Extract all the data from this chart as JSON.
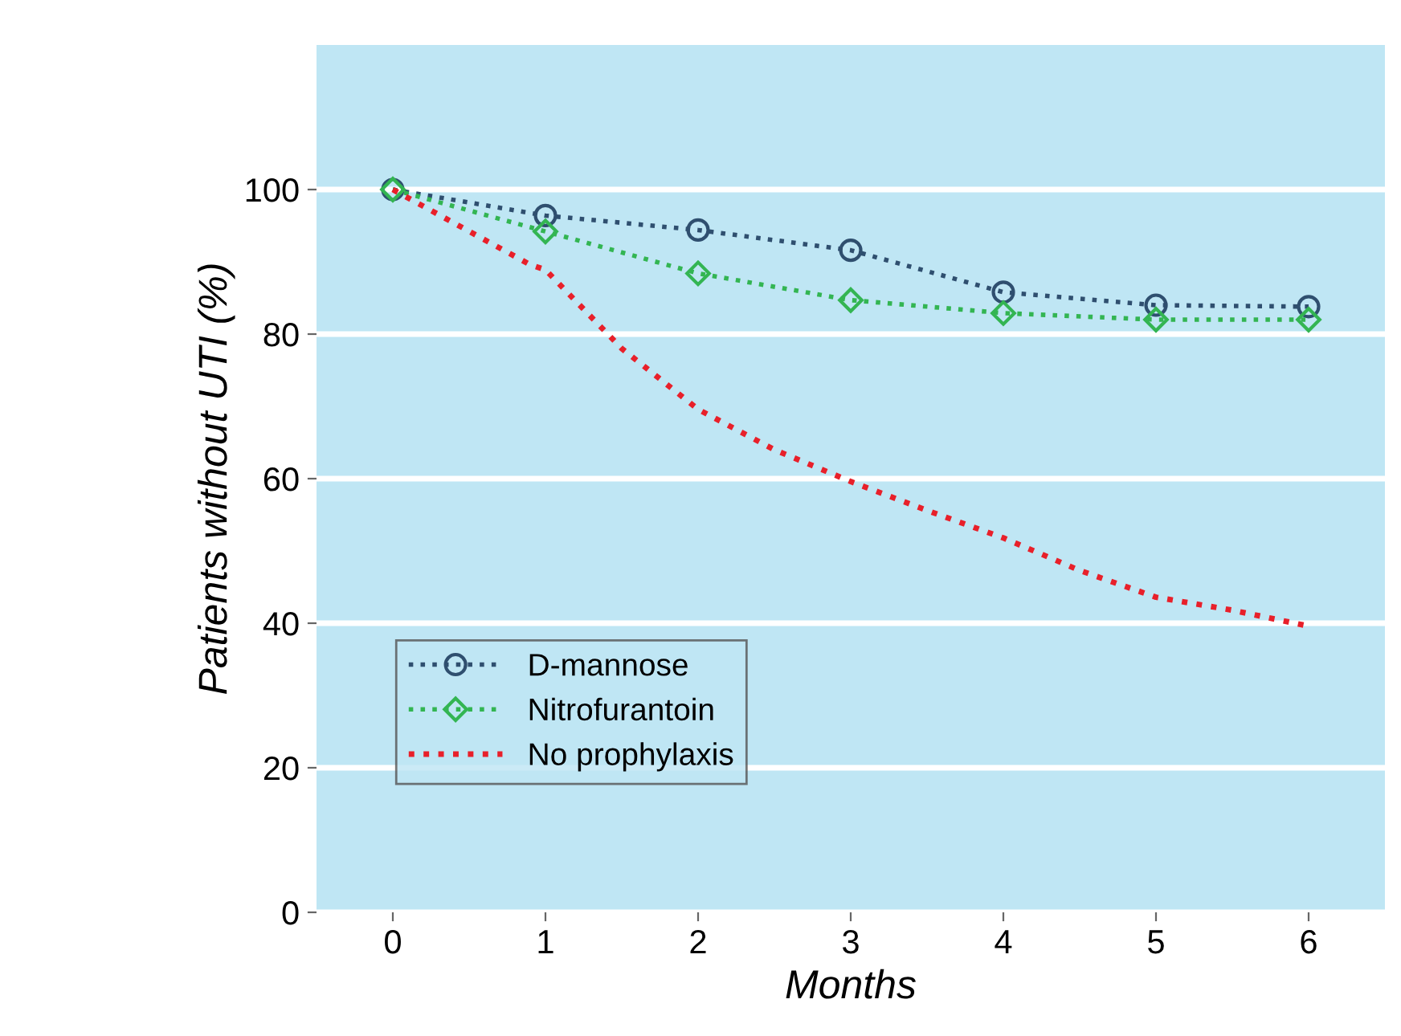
{
  "chart_data": {
    "type": "line",
    "xlabel": "Months",
    "ylabel": "Patients without UTI (%)",
    "xlim": [
      -0.5,
      6.5
    ],
    "xticks": [
      0,
      1,
      2,
      3,
      4,
      5,
      6
    ],
    "ylim": [
      0,
      120
    ],
    "yticks": [
      0,
      20,
      40,
      60,
      80,
      100
    ],
    "grid": "y",
    "legend": "bottom left",
    "line_style": "dotted",
    "series": [
      {
        "name": "D-mannose",
        "color": "#2f4f6f",
        "marker": "circle",
        "x": [
          0,
          1,
          2,
          3,
          4,
          5,
          6
        ],
        "values": [
          100,
          96.4,
          94.4,
          91.6,
          85.8,
          84,
          83.8
        ]
      },
      {
        "name": "Nitrofurantoin",
        "color": "#33b552",
        "marker": "diamond",
        "x": [
          0,
          1,
          2,
          3,
          4,
          5,
          6
        ],
        "values": [
          100,
          94.2,
          88.4,
          84.7,
          82.9,
          82,
          82
        ]
      },
      {
        "name": "No prophylaxis",
        "color": "#e8202a",
        "marker": "none",
        "x": [
          0,
          0.9,
          1,
          1.5,
          2,
          2.5,
          3,
          3.5,
          4,
          4.5,
          5,
          5.5,
          6
        ],
        "values": [
          100,
          89.6,
          88.9,
          78,
          69.6,
          64,
          59.6,
          55.6,
          51.8,
          47.3,
          43.6,
          41.8,
          39.6
        ]
      }
    ]
  }
}
